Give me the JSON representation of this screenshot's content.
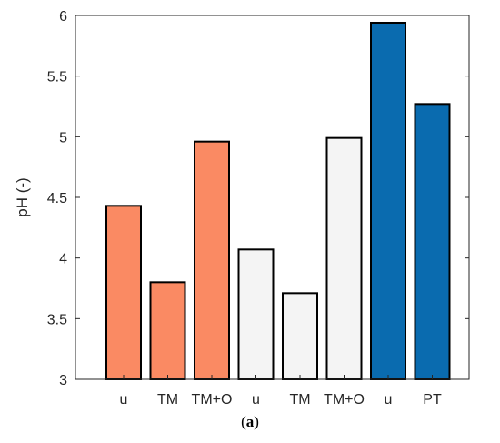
{
  "chart_data": {
    "type": "bar",
    "categories": [
      "u",
      "TM",
      "TM+O",
      "u",
      "TM",
      "TM+O",
      "u",
      "PT"
    ],
    "values": [
      4.43,
      3.8,
      4.96,
      4.07,
      3.71,
      4.99,
      5.94,
      5.27
    ],
    "bar_colors": [
      "#FA8A63",
      "#FA8A63",
      "#FA8A63",
      "#F4F4F4",
      "#F4F4F4",
      "#F4F4F4",
      "#0A6BAF",
      "#0A6BAF"
    ],
    "ylabel": "pH (-)",
    "xlabel": "",
    "ylim": [
      3,
      6
    ],
    "yticks": [
      "3",
      "3.5",
      "4",
      "4.5",
      "5",
      "5.5",
      "6"
    ],
    "grid": false
  },
  "caption": {
    "open": "(",
    "label": "a",
    "close": ")"
  }
}
